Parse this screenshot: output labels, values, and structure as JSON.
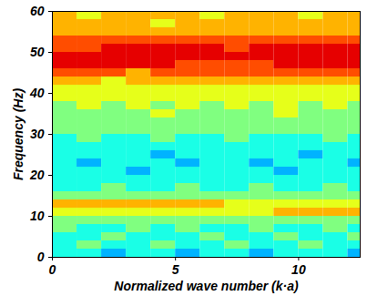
{
  "chart_data": {
    "type": "heatmap",
    "xlabel": "Normalized wave number (k·a)",
    "ylabel": "Frequency (Hz)",
    "xlim": [
      0,
      12.5
    ],
    "xticks": [
      0,
      5,
      10
    ],
    "ylim": [
      0,
      60
    ],
    "yticks": [
      0,
      10,
      20,
      30,
      40,
      50,
      60
    ],
    "x": [
      0,
      1,
      2,
      3,
      4,
      5,
      6,
      7,
      8,
      9,
      10,
      11,
      12
    ],
    "y": [
      0,
      2,
      4,
      6,
      8,
      10,
      12,
      14,
      16,
      18,
      20,
      22,
      24,
      26,
      28,
      30,
      32,
      34,
      36,
      38,
      40,
      42,
      44,
      46,
      48,
      50,
      52,
      54,
      56,
      58
    ],
    "color_range": [
      0,
      10
    ],
    "cells": [
      [
        4,
        4,
        3,
        4,
        4,
        3,
        4,
        4,
        3,
        4,
        4,
        4,
        3
      ],
      [
        4,
        5,
        4,
        4,
        5,
        4,
        4,
        5,
        4,
        4,
        5,
        4,
        4
      ],
      [
        4,
        4,
        5,
        4,
        4,
        4,
        5,
        4,
        4,
        5,
        4,
        4,
        5
      ],
      [
        5,
        4,
        4,
        5,
        4,
        5,
        4,
        4,
        5,
        4,
        4,
        5,
        4
      ],
      [
        5,
        5,
        5,
        5,
        5,
        5,
        5,
        5,
        5,
        5,
        5,
        5,
        5
      ],
      [
        6,
        6,
        6,
        6,
        6,
        6,
        6,
        6,
        6,
        7,
        7,
        7,
        7
      ],
      [
        7,
        7,
        7,
        7,
        7,
        7,
        7,
        6,
        6,
        6,
        6,
        6,
        6
      ],
      [
        5,
        5,
        5,
        5,
        5,
        5,
        5,
        5,
        5,
        5,
        5,
        5,
        5
      ],
      [
        4,
        4,
        5,
        4,
        4,
        5,
        4,
        4,
        5,
        4,
        4,
        5,
        4
      ],
      [
        4,
        4,
        4,
        4,
        4,
        4,
        4,
        4,
        4,
        4,
        4,
        4,
        4
      ],
      [
        4,
        4,
        4,
        3,
        4,
        4,
        4,
        4,
        4,
        3,
        4,
        4,
        4
      ],
      [
        4,
        3,
        4,
        4,
        4,
        3,
        4,
        4,
        3,
        4,
        4,
        4,
        3
      ],
      [
        4,
        4,
        4,
        4,
        3,
        4,
        4,
        4,
        4,
        4,
        3,
        4,
        4
      ],
      [
        4,
        4,
        4,
        4,
        4,
        4,
        4,
        4,
        4,
        4,
        4,
        4,
        4
      ],
      [
        4,
        5,
        4,
        4,
        5,
        4,
        4,
        5,
        4,
        4,
        4,
        5,
        4
      ],
      [
        5,
        5,
        5,
        5,
        5,
        5,
        5,
        5,
        5,
        5,
        5,
        5,
        5
      ],
      [
        5,
        5,
        5,
        5,
        5,
        5,
        5,
        5,
        5,
        5,
        5,
        5,
        5
      ],
      [
        5,
        5,
        5,
        5,
        6,
        5,
        5,
        5,
        5,
        6,
        5,
        5,
        5
      ],
      [
        5,
        6,
        5,
        6,
        5,
        6,
        5,
        6,
        5,
        6,
        5,
        6,
        5
      ],
      [
        6,
        6,
        6,
        6,
        6,
        6,
        6,
        6,
        6,
        6,
        6,
        6,
        6
      ],
      [
        6,
        6,
        6,
        6,
        6,
        6,
        6,
        6,
        6,
        6,
        6,
        6,
        6
      ],
      [
        7,
        7,
        6,
        7,
        7,
        7,
        7,
        7,
        7,
        7,
        7,
        7,
        7
      ],
      [
        8,
        8,
        8,
        7,
        8,
        8,
        8,
        8,
        8,
        8,
        8,
        8,
        8
      ],
      [
        9,
        9,
        9,
        9,
        9,
        8,
        8,
        8,
        8,
        9,
        9,
        9,
        9
      ],
      [
        9,
        9,
        9,
        9,
        9,
        9,
        9,
        9,
        9,
        9,
        9,
        9,
        9
      ],
      [
        8,
        8,
        9,
        9,
        9,
        9,
        9,
        8,
        9,
        9,
        9,
        9,
        9
      ],
      [
        8,
        8,
        8,
        8,
        8,
        8,
        8,
        8,
        8,
        8,
        8,
        8,
        8
      ],
      [
        7,
        7,
        7,
        7,
        7,
        7,
        7,
        7,
        7,
        7,
        7,
        7,
        7
      ],
      [
        7,
        7,
        7,
        7,
        6,
        7,
        7,
        7,
        7,
        7,
        7,
        7,
        7
      ],
      [
        7,
        6,
        7,
        7,
        7,
        7,
        6,
        7,
        7,
        7,
        6,
        7,
        7
      ]
    ]
  }
}
